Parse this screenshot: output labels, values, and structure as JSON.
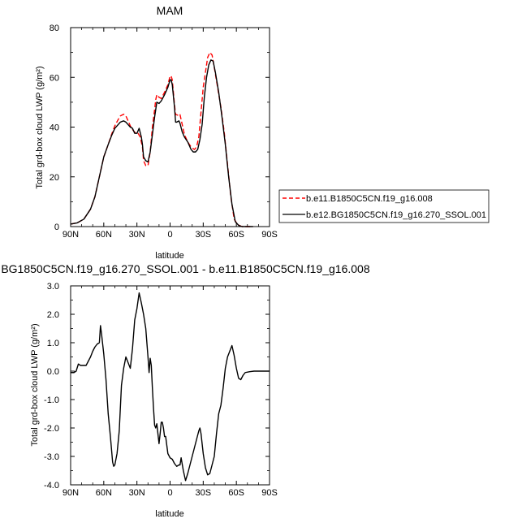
{
  "chart_data": [
    {
      "type": "line",
      "title": "MAM",
      "xlabel": "latitude",
      "ylabel": "Total grd-box cloud LWP (g/m²)",
      "xlim": [
        90,
        -90
      ],
      "ylim": [
        0,
        80
      ],
      "x_ticks": [
        {
          "value": 90,
          "label": "90N"
        },
        {
          "value": 60,
          "label": "60N"
        },
        {
          "value": 30,
          "label": "30N"
        },
        {
          "value": 0,
          "label": "0"
        },
        {
          "value": -30,
          "label": "30S"
        },
        {
          "value": -60,
          "label": "60S"
        },
        {
          "value": -90,
          "label": "90S"
        }
      ],
      "y_ticks": [
        {
          "value": 0,
          "label": "0"
        },
        {
          "value": 20,
          "label": "20"
        },
        {
          "value": 40,
          "label": "40"
        },
        {
          "value": 60,
          "label": "60"
        },
        {
          "value": 80,
          "label": "80"
        }
      ],
      "legend_position": "right",
      "series": [
        {
          "name": "b.e11.B1850C5CN.f19_g16.008",
          "color": "#ff0000",
          "dash": "dashed",
          "points": [
            [
              90,
              1
            ],
            [
              84,
              1.5
            ],
            [
              78,
              3
            ],
            [
              72,
              7
            ],
            [
              68,
              12
            ],
            [
              64,
              20
            ],
            [
              60,
              28
            ],
            [
              56,
              33
            ],
            [
              53,
              37
            ],
            [
              50,
              40.5
            ],
            [
              47,
              43
            ],
            [
              45,
              44.5
            ],
            [
              42,
              45.2
            ],
            [
              40,
              44.5
            ],
            [
              38,
              42.5
            ],
            [
              36,
              40.5
            ],
            [
              34,
              39
            ],
            [
              31,
              37.5
            ],
            [
              29,
              37.5
            ],
            [
              27,
              36
            ],
            [
              26,
              34
            ],
            [
              25,
              32
            ],
            [
              24,
              26.5
            ],
            [
              22,
              24.5
            ],
            [
              20,
              24.5
            ],
            [
              18,
              30
            ],
            [
              16,
              40
            ],
            [
              14,
              47
            ],
            [
              13,
              51
            ],
            [
              12,
              53
            ],
            [
              10,
              52
            ],
            [
              8,
              51.5
            ],
            [
              5,
              54
            ],
            [
              2,
              57
            ],
            [
              0,
              60.5
            ],
            [
              -1,
              60.5
            ],
            [
              -2,
              59
            ],
            [
              -4,
              49
            ],
            [
              -5,
              45
            ],
            [
              -6,
              45
            ],
            [
              -8,
              44.5
            ],
            [
              -9,
              45
            ],
            [
              -11,
              41
            ],
            [
              -13,
              37
            ],
            [
              -16,
              34
            ],
            [
              -19,
              32
            ],
            [
              -22,
              31
            ],
            [
              -24,
              32
            ],
            [
              -26,
              36
            ],
            [
              -28,
              46
            ],
            [
              -30,
              56
            ],
            [
              -32,
              62
            ],
            [
              -34,
              68
            ],
            [
              -36,
              70
            ],
            [
              -38,
              69
            ],
            [
              -40,
              64
            ],
            [
              -43,
              56
            ],
            [
              -46,
              48
            ],
            [
              -49,
              38
            ],
            [
              -52,
              25
            ],
            [
              -55,
              12
            ],
            [
              -58,
              3
            ],
            [
              -61,
              0.8
            ],
            [
              -65,
              0
            ],
            [
              -70,
              0
            ],
            [
              -75,
              0
            ]
          ]
        },
        {
          "name": "b.e12.BG1850C5CN.f19_g16.270_SSOL.001",
          "color": "#000000",
          "dash": "solid",
          "points": [
            [
              90,
              1
            ],
            [
              84,
              1.5
            ],
            [
              78,
              3
            ],
            [
              72,
              7
            ],
            [
              68,
              12
            ],
            [
              64,
              20
            ],
            [
              60,
              28
            ],
            [
              56,
              33
            ],
            [
              53,
              36.5
            ],
            [
              50,
              39.5
            ],
            [
              47,
              41
            ],
            [
              45,
              42
            ],
            [
              42,
              42.5
            ],
            [
              40,
              42
            ],
            [
              38,
              41
            ],
            [
              36,
              40
            ],
            [
              34,
              39.5
            ],
            [
              32,
              37.5
            ],
            [
              30,
              37.5
            ],
            [
              28,
              39.5
            ],
            [
              26,
              36
            ],
            [
              25,
              33
            ],
            [
              24,
              28
            ],
            [
              22,
              26.5
            ],
            [
              20,
              26
            ],
            [
              18,
              30
            ],
            [
              16,
              37
            ],
            [
              14,
              44
            ],
            [
              12,
              50
            ],
            [
              10,
              49.5
            ],
            [
              8,
              50.5
            ],
            [
              5,
              53
            ],
            [
              2,
              56
            ],
            [
              0,
              59
            ],
            [
              -1,
              59
            ],
            [
              -2,
              57
            ],
            [
              -4,
              48
            ],
            [
              -5,
              42
            ],
            [
              -6,
              42
            ],
            [
              -8,
              42.5
            ],
            [
              -9,
              41.5
            ],
            [
              -11,
              38
            ],
            [
              -13,
              36
            ],
            [
              -16,
              34
            ],
            [
              -19,
              31
            ],
            [
              -21,
              30
            ],
            [
              -23,
              30
            ],
            [
              -25,
              31
            ],
            [
              -27,
              35
            ],
            [
              -29,
              41
            ],
            [
              -31,
              52
            ],
            [
              -33,
              60
            ],
            [
              -35,
              65
            ],
            [
              -37,
              67
            ],
            [
              -39,
              66.5
            ],
            [
              -41,
              62
            ],
            [
              -44,
              54
            ],
            [
              -47,
              44
            ],
            [
              -50,
              33
            ],
            [
              -53,
              20
            ],
            [
              -56,
              9
            ],
            [
              -59,
              2
            ],
            [
              -62,
              0.5
            ],
            [
              -65,
              0
            ],
            [
              -70,
              0
            ],
            [
              -75,
              0
            ]
          ]
        }
      ]
    },
    {
      "type": "line",
      "title": "b.e12.BG1850C5CN.f19_g16.270_SSOL.001 - b.e11.B1850C5CN.f19_g16.008",
      "xlabel": "latitude",
      "ylabel": "Total grd-box cloud LWP (g/m²)",
      "xlim": [
        90,
        -90
      ],
      "ylim": [
        -4.0,
        3.0
      ],
      "x_ticks": [
        {
          "value": 90,
          "label": "90N"
        },
        {
          "value": 60,
          "label": "60N"
        },
        {
          "value": 30,
          "label": "30N"
        },
        {
          "value": 0,
          "label": "0"
        },
        {
          "value": -30,
          "label": "30S"
        },
        {
          "value": -60,
          "label": "60S"
        },
        {
          "value": -90,
          "label": "90S"
        }
      ],
      "y_ticks": [
        {
          "value": -4.0,
          "label": "-4.0"
        },
        {
          "value": -3.0,
          "label": "-3.0"
        },
        {
          "value": -2.0,
          "label": "-2.0"
        },
        {
          "value": -1.0,
          "label": "-1.0"
        },
        {
          "value": 0.0,
          "label": "0.0"
        },
        {
          "value": 1.0,
          "label": "1.0"
        },
        {
          "value": 2.0,
          "label": "2.0"
        },
        {
          "value": 3.0,
          "label": "3.0"
        }
      ],
      "series": [
        {
          "name": "",
          "color": "#000000",
          "dash": "solid",
          "points": [
            [
              90,
              -0.05
            ],
            [
              87,
              -0.05
            ],
            [
              85,
              0
            ],
            [
              83,
              0.25
            ],
            [
              81,
              0.2
            ],
            [
              78,
              0.2
            ],
            [
              76,
              0.2
            ],
            [
              74,
              0.35
            ],
            [
              72,
              0.5
            ],
            [
              70,
              0.7
            ],
            [
              68,
              0.85
            ],
            [
              66,
              0.95
            ],
            [
              64,
              1.0
            ],
            [
              63,
              1.6
            ],
            [
              62,
              1.3
            ],
            [
              60,
              0.6
            ],
            [
              58,
              -0.3
            ],
            [
              56,
              -1.5
            ],
            [
              54,
              -2.3
            ],
            [
              52,
              -3.2
            ],
            [
              51,
              -3.35
            ],
            [
              50,
              -3.3
            ],
            [
              48,
              -2.9
            ],
            [
              46,
              -2.1
            ],
            [
              44,
              -0.5
            ],
            [
              42,
              0.1
            ],
            [
              40,
              0.5
            ],
            [
              38,
              0.3
            ],
            [
              36,
              0.1
            ],
            [
              34,
              0.8
            ],
            [
              32,
              1.8
            ],
            [
              30,
              2.2
            ],
            [
              28,
              2.75
            ],
            [
              26,
              2.4
            ],
            [
              24,
              2.0
            ],
            [
              22,
              1.5
            ],
            [
              20,
              0.5
            ],
            [
              19,
              -0.05
            ],
            [
              18,
              0.45
            ],
            [
              17,
              0.2
            ],
            [
              16,
              -0.6
            ],
            [
              15,
              -1.3
            ],
            [
              14,
              -1.9
            ],
            [
              13,
              -2.0
            ],
            [
              12,
              -1.85
            ],
            [
              11,
              -2.2
            ],
            [
              10,
              -2.55
            ],
            [
              9,
              -2.2
            ],
            [
              8,
              -1.8
            ],
            [
              7,
              -1.8
            ],
            [
              6,
              -2.0
            ],
            [
              5,
              -2.3
            ],
            [
              4,
              -2.3
            ],
            [
              2,
              -2.9
            ],
            [
              0,
              -3.05
            ],
            [
              -2,
              -3.1
            ],
            [
              -4,
              -3.25
            ],
            [
              -6,
              -3.35
            ],
            [
              -8,
              -3.3
            ],
            [
              -9,
              -3.3
            ],
            [
              -10,
              -3.05
            ],
            [
              -12,
              -3.5
            ],
            [
              -14,
              -3.85
            ],
            [
              -16,
              -3.6
            ],
            [
              -18,
              -3.3
            ],
            [
              -20,
              -3.0
            ],
            [
              -22,
              -2.7
            ],
            [
              -24,
              -2.4
            ],
            [
              -26,
              -2.1
            ],
            [
              -27,
              -2.0
            ],
            [
              -28,
              -2.2
            ],
            [
              -30,
              -2.9
            ],
            [
              -32,
              -3.4
            ],
            [
              -34,
              -3.65
            ],
            [
              -36,
              -3.6
            ],
            [
              -38,
              -3.3
            ],
            [
              -40,
              -3.0
            ],
            [
              -42,
              -2.2
            ],
            [
              -44,
              -1.5
            ],
            [
              -46,
              -1.2
            ],
            [
              -48,
              -0.6
            ],
            [
              -50,
              0.1
            ],
            [
              -52,
              0.5
            ],
            [
              -54,
              0.7
            ],
            [
              -56,
              0.9
            ],
            [
              -58,
              0.55
            ],
            [
              -60,
              0.1
            ],
            [
              -62,
              -0.25
            ],
            [
              -64,
              -0.3
            ],
            [
              -66,
              -0.15
            ],
            [
              -68,
              -0.05
            ],
            [
              -72,
              -0.02
            ],
            [
              -76,
              0
            ],
            [
              -82,
              0
            ],
            [
              -90,
              0
            ]
          ]
        }
      ]
    }
  ]
}
